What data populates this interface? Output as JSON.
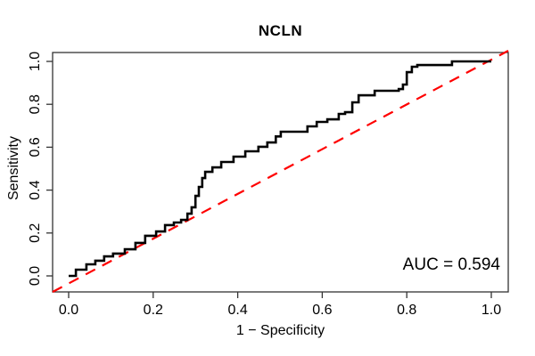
{
  "chart_data": {
    "type": "line",
    "subtype": "roc-step-curve",
    "title": "NCLN",
    "xlabel": "1 − Specificity",
    "ylabel": "Sensitivity",
    "xlim": [
      0.0,
      1.0
    ],
    "ylim": [
      0.0,
      1.0
    ],
    "x_tick_values": [
      0.0,
      0.2,
      0.4,
      0.6,
      0.8,
      1.0
    ],
    "x_tick_labels": [
      "0.0",
      "0.2",
      "0.4",
      "0.6",
      "0.8",
      "1.0"
    ],
    "y_tick_values": [
      0.0,
      0.2,
      0.4,
      0.6,
      0.8,
      1.0
    ],
    "y_tick_labels": [
      "0.0",
      "0.2",
      "0.4",
      "0.6",
      "0.8",
      "1.0"
    ],
    "grid": false,
    "legend": null,
    "annotation": {
      "label": "AUC = 0.594",
      "auc": 0.594
    },
    "colors": {
      "curve": "#000000",
      "reference": "#ff0000",
      "axis": "#333333",
      "background": "#ffffff"
    },
    "series": [
      {
        "name": "ROC curve",
        "style": "step",
        "color": "#000000",
        "x": [
          0.0,
          0.017,
          0.042,
          0.063,
          0.084,
          0.105,
          0.133,
          0.158,
          0.181,
          0.207,
          0.228,
          0.249,
          0.266,
          0.281,
          0.291,
          0.3,
          0.308,
          0.316,
          0.323,
          0.34,
          0.361,
          0.39,
          0.418,
          0.449,
          0.47,
          0.49,
          0.502,
          0.561,
          0.565,
          0.587,
          0.612,
          0.639,
          0.654,
          0.671,
          0.686,
          0.724,
          0.781,
          0.791,
          0.8,
          0.812,
          0.825,
          0.907,
          1.0
        ],
        "y": [
          0.0,
          0.029,
          0.054,
          0.071,
          0.091,
          0.104,
          0.124,
          0.154,
          0.187,
          0.207,
          0.237,
          0.249,
          0.261,
          0.29,
          0.32,
          0.373,
          0.415,
          0.456,
          0.485,
          0.506,
          0.531,
          0.556,
          0.581,
          0.602,
          0.622,
          0.65,
          0.672,
          0.672,
          0.697,
          0.718,
          0.73,
          0.755,
          0.763,
          0.809,
          0.842,
          0.863,
          0.871,
          0.892,
          0.95,
          0.975,
          0.983,
          1.0,
          1.0
        ]
      },
      {
        "name": "chance reference line",
        "style": "dashed",
        "color": "#ff0000",
        "slope": 1,
        "intercept": 0
      }
    ]
  }
}
